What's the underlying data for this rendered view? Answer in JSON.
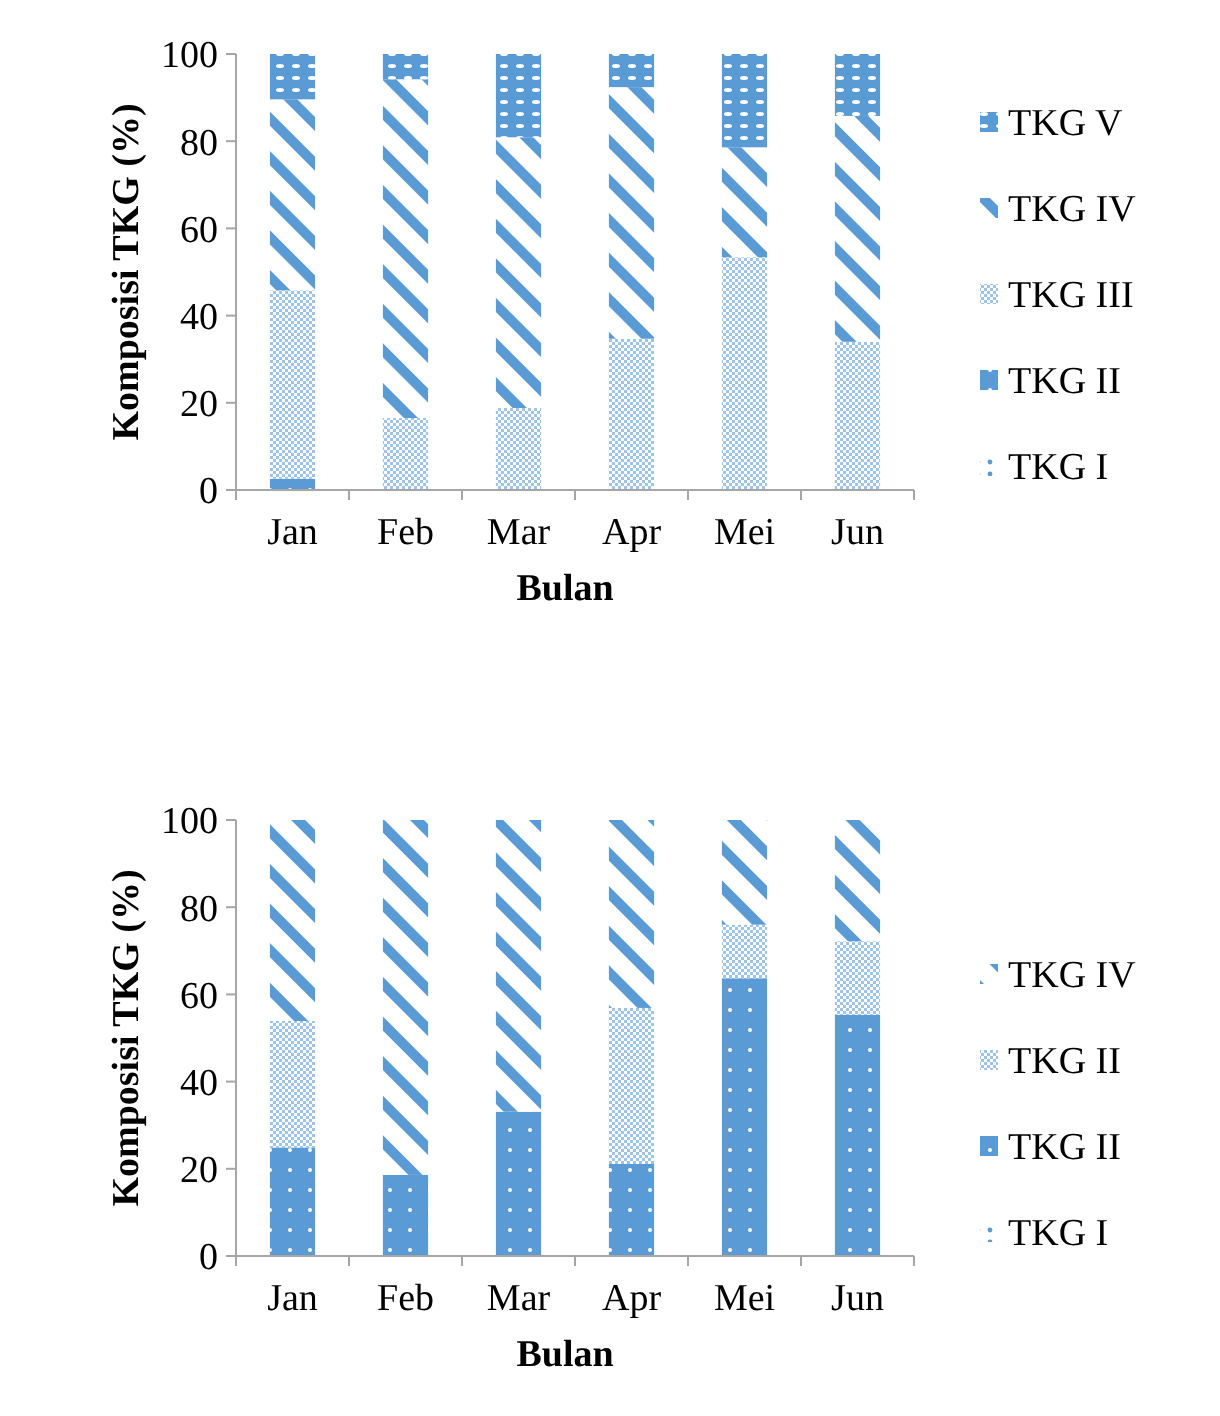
{
  "chart_data": [
    {
      "type": "bar",
      "stacked": true,
      "categories": [
        "Jan",
        "Feb",
        "Mar",
        "Apr",
        "Mei",
        "Jun"
      ],
      "xlabel": "Bulan",
      "ylabel": "Komposisi TKG (%)",
      "ylim": [
        0,
        100
      ],
      "yticks": [
        0,
        20,
        40,
        60,
        80,
        100
      ],
      "legend": "right",
      "series": [
        {
          "name": "TKG I",
          "color": "#5b9bd5",
          "values": [
            0,
            0,
            0,
            0,
            0,
            0
          ]
        },
        {
          "name": "TKG II",
          "color": "#5b9bd5",
          "values": [
            2.6,
            0,
            0,
            0,
            0,
            0
          ]
        },
        {
          "name": "TKG III",
          "color": "#9dc3e6",
          "values": [
            43.2,
            16.5,
            18.8,
            34.7,
            53.4,
            34.0
          ]
        },
        {
          "name": "TKG IV",
          "color": "#5b9bd5",
          "values": [
            43.8,
            77.7,
            62.1,
            57.7,
            25.2,
            51.8
          ]
        },
        {
          "name": "TKG V",
          "color": "#5b9bd5",
          "values": [
            10.4,
            5.8,
            19.1,
            7.6,
            21.4,
            14.2
          ]
        }
      ]
    },
    {
      "type": "bar",
      "stacked": true,
      "categories": [
        "Jan",
        "Feb",
        "Mar",
        "Apr",
        "Mei",
        "Jun"
      ],
      "xlabel": "Bulan",
      "ylabel": "Komposisi TKG (%)",
      "ylim": [
        0,
        100
      ],
      "yticks": [
        0,
        20,
        40,
        60,
        80,
        100
      ],
      "legend": "right",
      "series": [
        {
          "name": "TKG I",
          "color": "#5b9bd5",
          "values": [
            0,
            0,
            0,
            0,
            0,
            0
          ]
        },
        {
          "name": "TKG II",
          "color": "#5b9bd5",
          "values": [
            24.9,
            18.6,
            33.1,
            21.1,
            63.7,
            55.3
          ]
        },
        {
          "name": "TKG II",
          "color": "#9dc3e6",
          "values": [
            29.0,
            0,
            0,
            35.8,
            12.3,
            16.9
          ]
        },
        {
          "name": "TKG IV",
          "color": "#5b9bd5",
          "values": [
            46.1,
            81.4,
            66.9,
            43.1,
            24.0,
            27.8
          ]
        }
      ]
    }
  ]
}
